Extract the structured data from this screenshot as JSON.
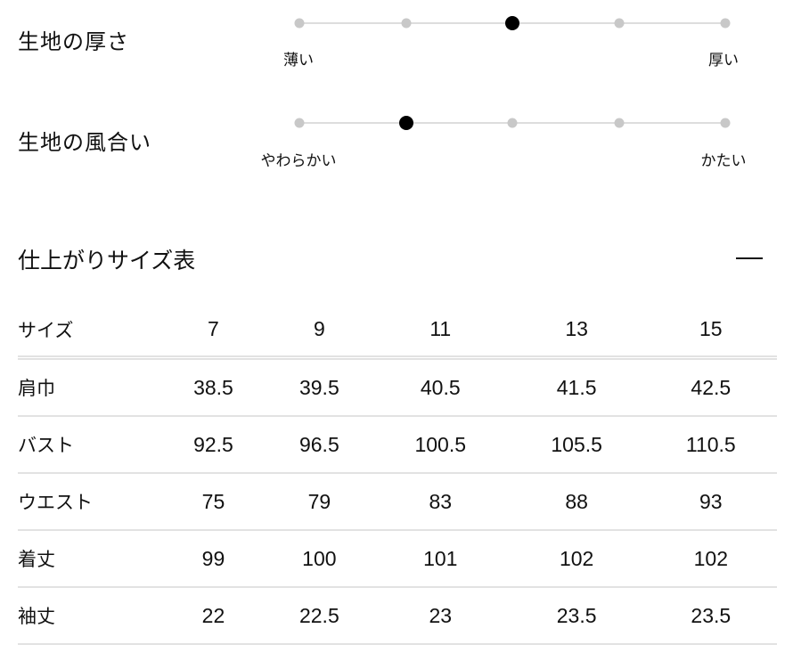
{
  "scales": [
    {
      "title": "生地の厚さ",
      "min_label": "薄い",
      "max_label": "厚い",
      "steps": 5,
      "selected": 3
    },
    {
      "title": "生地の風合い",
      "min_label": "やわらかい",
      "max_label": "かたい",
      "steps": 5,
      "selected": 2
    }
  ],
  "size_table": {
    "title": "仕上がりサイズ表",
    "collapse_icon": "minus-icon",
    "header": [
      "サイズ",
      "7",
      "9",
      "11",
      "13",
      "15"
    ],
    "rows": [
      [
        "肩巾",
        "38.5",
        "39.5",
        "40.5",
        "41.5",
        "42.5"
      ],
      [
        "バスト",
        "92.5",
        "96.5",
        "100.5",
        "105.5",
        "110.5"
      ],
      [
        "ウエスト",
        "75",
        "79",
        "83",
        "88",
        "93"
      ],
      [
        "着丈",
        "99",
        "100",
        "101",
        "102",
        "102"
      ],
      [
        "袖丈",
        "22",
        "22.5",
        "23",
        "23.5",
        "23.5"
      ]
    ]
  }
}
